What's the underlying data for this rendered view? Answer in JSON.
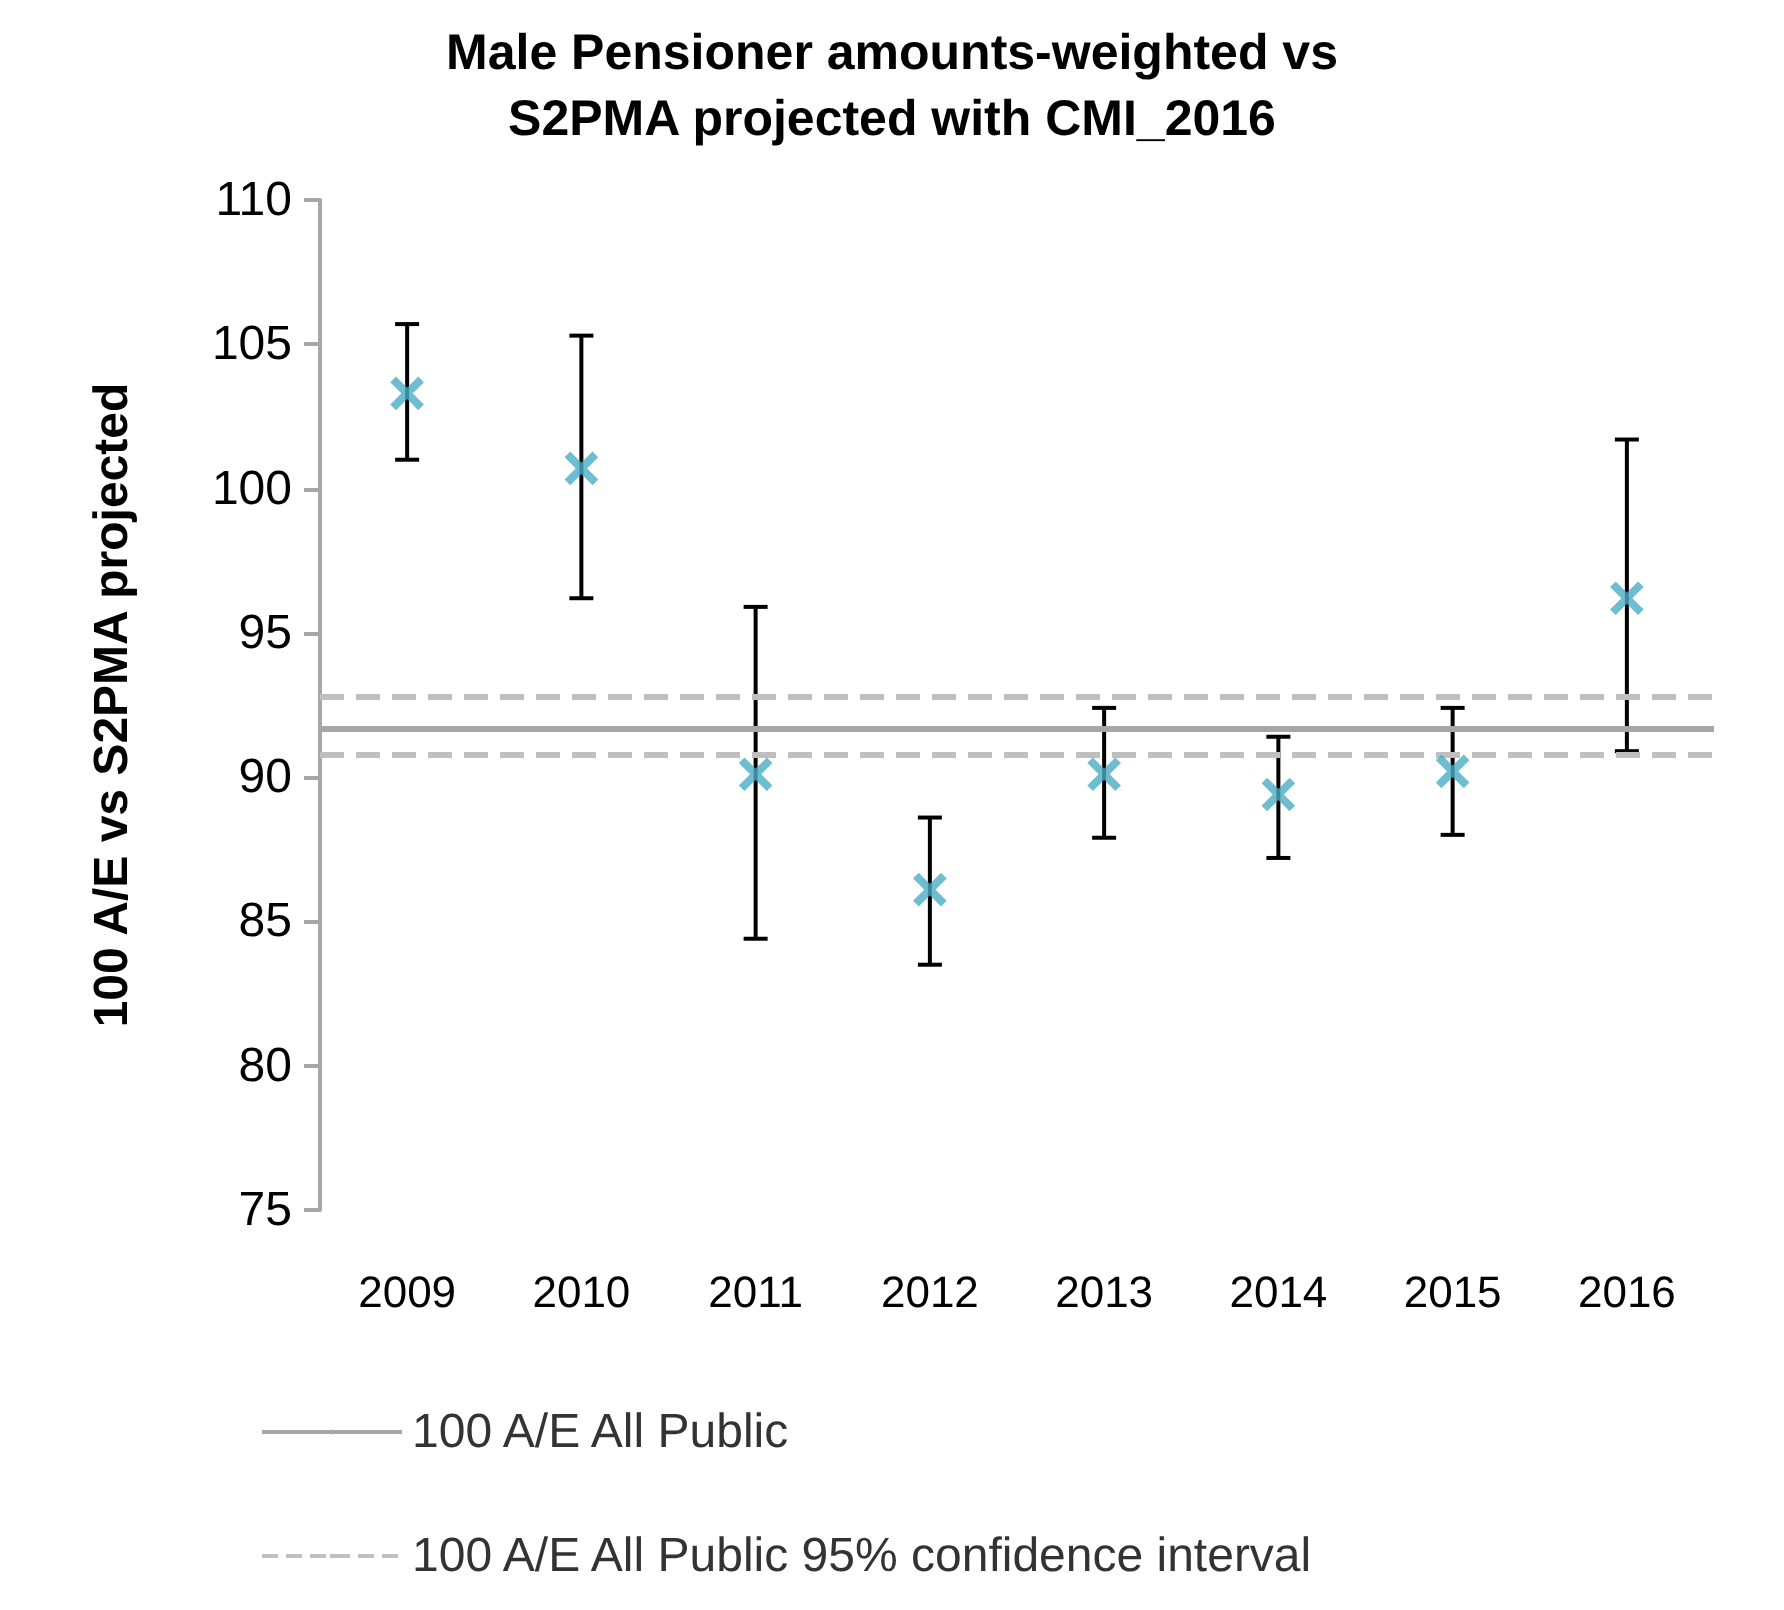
{
  "chart_data": {
    "type": "scatter",
    "title": "Male Pensioner amounts-weighted vs\nS2PMA projected with CMI_2016",
    "ylabel": "100 A/E vs S2PMA projected",
    "categories": [
      "2009",
      "2010",
      "2011",
      "2012",
      "2013",
      "2014",
      "2015",
      "2016"
    ],
    "values": [
      103.3,
      100.7,
      90.1,
      86.1,
      90.1,
      89.4,
      90.2,
      96.2
    ],
    "errors": [
      [
        101.0,
        105.7
      ],
      [
        96.2,
        105.3
      ],
      [
        84.4,
        95.9
      ],
      [
        83.5,
        88.6
      ],
      [
        87.9,
        92.4
      ],
      [
        87.2,
        91.4
      ],
      [
        88.0,
        92.4
      ],
      [
        90.9,
        101.7
      ]
    ],
    "color": "#4bacc6",
    "marker": "cross",
    "ylim": [
      75,
      110
    ],
    "yticks": [
      75,
      80,
      85,
      90,
      95,
      100,
      105,
      110
    ],
    "grid": false,
    "legend": "bottom",
    "ref_lines": [
      {
        "axis": "y",
        "value": 91.7,
        "label": "100 A/E All Public",
        "color": "#a6a6a6",
        "line_style": "solid"
      },
      {
        "axis": "y",
        "value": 92.8,
        "label": "100 A/E All Public 95% confidence interval",
        "color": "#bfbfbf",
        "line_style": "dashed"
      },
      {
        "axis": "y",
        "value": 90.8,
        "color": "#bfbfbf",
        "line_style": "dashed"
      }
    ]
  }
}
